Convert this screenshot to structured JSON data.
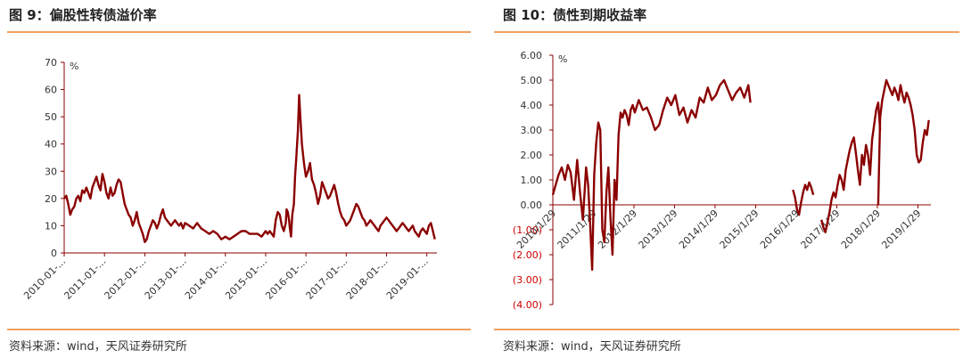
{
  "left": {
    "title": "图 9：偏股性转债溢价率",
    "source": "资料来源：wind，天风证券研究所"
  },
  "right": {
    "title": "图 10：债性到期收益率",
    "source": "资料来源：wind，天风证券研究所"
  },
  "chart_data": [
    {
      "type": "line",
      "title": "图 9：偏股性转债溢价率",
      "ylabel": "%",
      "ylim": [
        0,
        70
      ],
      "yticks": [
        0,
        10,
        20,
        30,
        40,
        50,
        60,
        70
      ],
      "xlim": [
        2010.0,
        2019.25
      ],
      "xticks": [
        {
          "x": 2010.0,
          "label": "2010-01-..."
        },
        {
          "x": 2011.0,
          "label": "2011-01-..."
        },
        {
          "x": 2012.0,
          "label": "2012-01-..."
        },
        {
          "x": 2013.0,
          "label": "2013-01-..."
        },
        {
          "x": 2014.0,
          "label": "2014-01-..."
        },
        {
          "x": 2015.0,
          "label": "2015-01-..."
        },
        {
          "x": 2016.0,
          "label": "2016-01-..."
        },
        {
          "x": 2017.0,
          "label": "2017-01-..."
        },
        {
          "x": 2018.0,
          "label": "2018-01-..."
        },
        {
          "x": 2019.0,
          "label": "2019-01-..."
        }
      ],
      "color": "#8b0000",
      "grid": false,
      "series": [
        {
          "x": [
            2010.0,
            2010.05,
            2010.1,
            2010.15,
            2010.2,
            2010.25,
            2010.3,
            2010.35,
            2010.4,
            2010.45,
            2010.5,
            2010.55,
            2010.6,
            2010.65,
            2010.7,
            2010.75,
            2010.8,
            2010.85,
            2010.9,
            2010.95,
            2011.0,
            2011.05,
            2011.1,
            2011.15,
            2011.2,
            2011.25,
            2011.3,
            2011.35,
            2011.4,
            2011.45,
            2011.5,
            2011.55,
            2011.6,
            2011.65,
            2011.7,
            2011.75,
            2011.8,
            2011.85,
            2011.9,
            2011.95,
            2012.0,
            2012.05,
            2012.1,
            2012.15,
            2012.2,
            2012.25,
            2012.3,
            2012.35,
            2012.4,
            2012.45,
            2012.5,
            2012.55,
            2012.6,
            2012.65,
            2012.7,
            2012.75,
            2012.8,
            2012.85,
            2012.9,
            2012.95,
            2013.0,
            2013.1,
            2013.2,
            2013.3,
            2013.4,
            2013.5,
            2013.6,
            2013.7,
            2013.8,
            2013.9,
            2014.0,
            2014.1,
            2014.2,
            2014.3,
            2014.4,
            2014.5,
            2014.6,
            2014.7,
            2014.8,
            2014.9,
            2014.95,
            2015.0,
            2015.05,
            2015.1,
            2015.15,
            2015.2,
            2015.25,
            2015.3,
            2015.35,
            2015.4,
            2015.45,
            2015.5,
            2015.52,
            2015.55,
            2015.58,
            2015.6,
            2015.63,
            2015.66,
            2015.7,
            2015.73,
            2015.76,
            2015.8,
            2015.83,
            2015.86,
            2015.9,
            2015.95,
            2016.0,
            2016.05,
            2016.1,
            2016.15,
            2016.2,
            2016.25,
            2016.3,
            2016.35,
            2016.4,
            2016.45,
            2016.5,
            2016.55,
            2016.6,
            2016.65,
            2016.7,
            2016.75,
            2016.8,
            2016.85,
            2016.9,
            2016.95,
            2017.0,
            2017.05,
            2017.1,
            2017.15,
            2017.2,
            2017.25,
            2017.3,
            2017.35,
            2017.4,
            2017.45,
            2017.5,
            2017.55,
            2017.6,
            2017.65,
            2017.7,
            2017.75,
            2017.8,
            2017.85,
            2017.9,
            2017.95,
            2018.0,
            2018.05,
            2018.1,
            2018.15,
            2018.2,
            2018.25,
            2018.3,
            2018.35,
            2018.4,
            2018.45,
            2018.5,
            2018.55,
            2018.6,
            2018.65,
            2018.7,
            2018.75,
            2018.8,
            2018.85,
            2018.9,
            2018.95,
            2019.0,
            2019.05,
            2019.1,
            2019.15,
            2019.2
          ],
          "y": [
            20,
            21,
            18,
            14,
            16,
            17,
            20,
            21,
            19,
            23,
            22,
            24,
            22,
            20,
            24,
            26,
            28,
            25,
            23,
            29,
            26,
            22,
            20,
            24,
            21,
            22,
            25,
            27,
            26,
            22,
            18,
            16,
            14,
            13,
            10,
            12,
            15,
            11,
            9,
            7,
            4,
            5,
            8,
            10,
            12,
            11,
            9,
            11,
            14,
            16,
            13,
            12,
            11,
            10,
            11,
            12,
            11,
            10,
            11,
            9,
            11,
            10,
            9,
            11,
            9,
            8,
            7,
            8,
            7,
            5,
            6,
            5,
            6,
            7,
            8,
            8,
            7,
            7,
            7,
            6,
            7,
            8,
            7,
            8,
            7,
            6,
            12,
            15,
            14,
            10,
            8,
            11,
            16,
            15,
            12,
            9,
            6,
            14,
            18,
            28,
            35,
            45,
            58,
            50,
            40,
            33,
            28,
            30,
            33,
            27,
            25,
            22,
            18,
            21,
            26,
            24,
            22,
            20,
            21,
            23,
            25,
            22,
            18,
            15,
            13,
            12,
            10,
            11,
            12,
            14,
            16,
            18,
            17,
            15,
            13,
            12,
            10,
            11,
            12,
            11,
            10,
            9,
            8,
            10,
            11,
            12,
            13,
            12,
            11,
            10,
            9,
            8,
            9,
            10,
            11,
            10,
            9,
            8,
            9,
            10,
            8,
            7,
            6,
            8,
            9,
            8,
            7,
            10,
            11,
            8,
            5
          ]
        }
      ]
    },
    {
      "type": "line",
      "title": "图 10：债性到期收益率",
      "ylabel": "%",
      "ylim": [
        -4.0,
        6.0
      ],
      "yticks": [
        {
          "v": 6.0,
          "label": "6.00"
        },
        {
          "v": 5.0,
          "label": "5.00"
        },
        {
          "v": 4.0,
          "label": "4.00"
        },
        {
          "v": 3.0,
          "label": "3.00"
        },
        {
          "v": 2.0,
          "label": "2.00"
        },
        {
          "v": 1.0,
          "label": "1.00"
        },
        {
          "v": 0.0,
          "label": "0.00"
        },
        {
          "v": -1.0,
          "label": "(1.00)"
        },
        {
          "v": -2.0,
          "label": "(2.00)"
        },
        {
          "v": -3.0,
          "label": "(3.00)"
        },
        {
          "v": -4.0,
          "label": "(4.00)"
        }
      ],
      "xlim": [
        2010.08,
        2019.4
      ],
      "xticks": [
        {
          "x": 2010.08,
          "label": "2010/1/29"
        },
        {
          "x": 2011.08,
          "label": "2011/1/29"
        },
        {
          "x": 2012.08,
          "label": "2012/1/29"
        },
        {
          "x": 2013.08,
          "label": "2013/1/29"
        },
        {
          "x": 2014.08,
          "label": "2014/1/29"
        },
        {
          "x": 2015.08,
          "label": "2015/1/29"
        },
        {
          "x": 2016.08,
          "label": "2016/1/29"
        },
        {
          "x": 2017.08,
          "label": "2017/1/29"
        },
        {
          "x": 2018.08,
          "label": "2018/1/29"
        },
        {
          "x": 2019.08,
          "label": "2019/1/29"
        }
      ],
      "color": "#8b0000",
      "negative_label_color": "#cc0000",
      "grid": false,
      "series": [
        {
          "segments": [
            {
              "x": [
                2010.08,
                2010.15,
                2010.22,
                2010.3,
                2010.38,
                2010.45,
                2010.52,
                2010.6,
                2010.68,
                2010.75,
                2010.82,
                2010.9,
                2010.95,
                2011.0,
                2011.05,
                2011.1,
                2011.15,
                2011.2,
                2011.25,
                2011.3,
                2011.35,
                2011.4,
                2011.45,
                2011.5,
                2011.55,
                2011.6,
                2011.65,
                2011.7,
                2011.75,
                2011.8,
                2011.85,
                2011.9,
                2011.95,
                2012.0,
                2012.05,
                2012.1,
                2012.2,
                2012.3,
                2012.4,
                2012.5,
                2012.6,
                2012.7,
                2012.8,
                2012.9,
                2013.0,
                2013.1,
                2013.2,
                2013.3,
                2013.4,
                2013.5,
                2013.6,
                2013.7,
                2013.8,
                2013.9,
                2014.0,
                2014.1,
                2014.2,
                2014.3,
                2014.4,
                2014.5,
                2014.6,
                2014.7,
                2014.8,
                2014.9,
                2014.95
              ],
              "y": [
                0.4,
                0.8,
                1.2,
                1.5,
                1.0,
                1.6,
                1.3,
                0.2,
                1.8,
                0.5,
                -0.6,
                1.5,
                0.8,
                -0.8,
                -2.6,
                1.2,
                2.5,
                3.3,
                3.0,
                -1.0,
                -1.5,
                0.5,
                1.5,
                -0.5,
                -2.0,
                1.0,
                0.2,
                2.8,
                3.7,
                3.5,
                3.8,
                3.6,
                3.2,
                3.8,
                4.0,
                3.7,
                4.2,
                3.8,
                3.9,
                3.5,
                3.0,
                3.2,
                3.8,
                4.3,
                4.0,
                4.4,
                3.6,
                3.9,
                3.3,
                3.8,
                3.5,
                4.3,
                4.1,
                4.7,
                4.2,
                4.4,
                4.8,
                5.0,
                4.6,
                4.2,
                4.5,
                4.7,
                4.3,
                4.8,
                4.1
              ]
            },
            {
              "x": [
                2016.0,
                2016.05,
                2016.1,
                2016.15,
                2016.2,
                2016.25,
                2016.3,
                2016.35,
                2016.4,
                2016.45,
                2016.5
              ],
              "y": [
                0.6,
                0.3,
                -0.2,
                -0.4,
                0.1,
                0.5,
                0.8,
                0.6,
                0.9,
                0.7,
                0.4
              ]
            },
            {
              "x": [
                2016.7,
                2016.75,
                2016.8,
                2016.85,
                2016.9,
                2016.95,
                2017.0,
                2017.05,
                2017.1,
                2017.15,
                2017.2,
                2017.25,
                2017.3,
                2017.35,
                2017.4,
                2017.45,
                2017.5,
                2017.55,
                2017.6,
                2017.65,
                2017.7,
                2017.75,
                2017.8,
                2017.85,
                2017.9,
                2017.95,
                2018.0,
                2018.05,
                2018.1,
                2018.15
              ],
              "y": [
                -0.6,
                -0.9,
                -1.1,
                -0.7,
                -0.3,
                0.2,
                0.5,
                0.3,
                0.8,
                1.2,
                1.0,
                0.6,
                1.4,
                1.8,
                2.2,
                2.5,
                2.7,
                2.1,
                1.4,
                0.8,
                2.0,
                1.6,
                2.4,
                2.0,
                1.2,
                2.6,
                3.2,
                3.8,
                4.1,
                3.0
              ]
            },
            {
              "x": [
                2018.1,
                2018.15,
                2018.2,
                2018.25,
                2018.3,
                2018.35,
                2018.4,
                2018.45,
                2018.5,
                2018.55,
                2018.6,
                2018.65,
                2018.7,
                2018.75,
                2018.8,
                2018.85,
                2018.9,
                2018.95,
                2019.0,
                2019.05,
                2019.1,
                2019.15,
                2019.2,
                2019.25,
                2019.3,
                2019.35
              ],
              "y": [
                0.0,
                3.5,
                4.2,
                4.6,
                5.0,
                4.8,
                4.6,
                4.4,
                4.7,
                4.5,
                4.2,
                4.8,
                4.4,
                4.1,
                4.5,
                4.3,
                4.0,
                3.6,
                3.0,
                2.0,
                1.7,
                1.8,
                2.5,
                3.0,
                2.8,
                3.4
              ]
            }
          ]
        }
      ]
    }
  ]
}
